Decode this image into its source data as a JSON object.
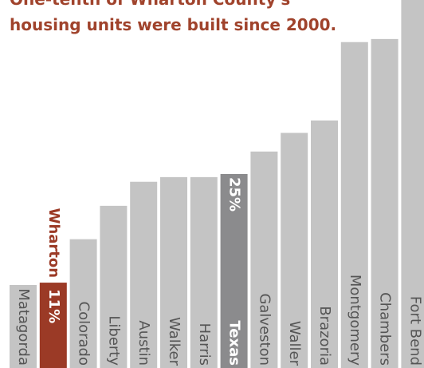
{
  "chart_data": {
    "type": "bar",
    "title": [
      "One-tenth of Wharton County's",
      "housing units were built since 2000."
    ],
    "categories": [
      "Matagorda",
      "Wharton",
      "Colorado",
      "Liberty",
      "Austin",
      "Walker",
      "Harris",
      "Texas",
      "Galveston",
      "Waller",
      "Brazoria",
      "Montgomery",
      "Chambers",
      "Fort Bend"
    ],
    "values": [
      10.7,
      11,
      16.6,
      20.9,
      24,
      24.6,
      24.6,
      25,
      27.9,
      30.3,
      31.9,
      42,
      42.4,
      48
    ],
    "value_labels": [
      null,
      "11%",
      null,
      null,
      null,
      null,
      null,
      "25%",
      null,
      null,
      null,
      null,
      null,
      null
    ],
    "colors": [
      "#c4c4c4",
      "#9b3a26",
      "#c4c4c4",
      "#c4c4c4",
      "#c4c4c4",
      "#c4c4c4",
      "#c4c4c4",
      "#8b8b8d",
      "#c4c4c4",
      "#c4c4c4",
      "#c4c4c4",
      "#c4c4c4",
      "#c4c4c4",
      "#c4c4c4"
    ]
  }
}
